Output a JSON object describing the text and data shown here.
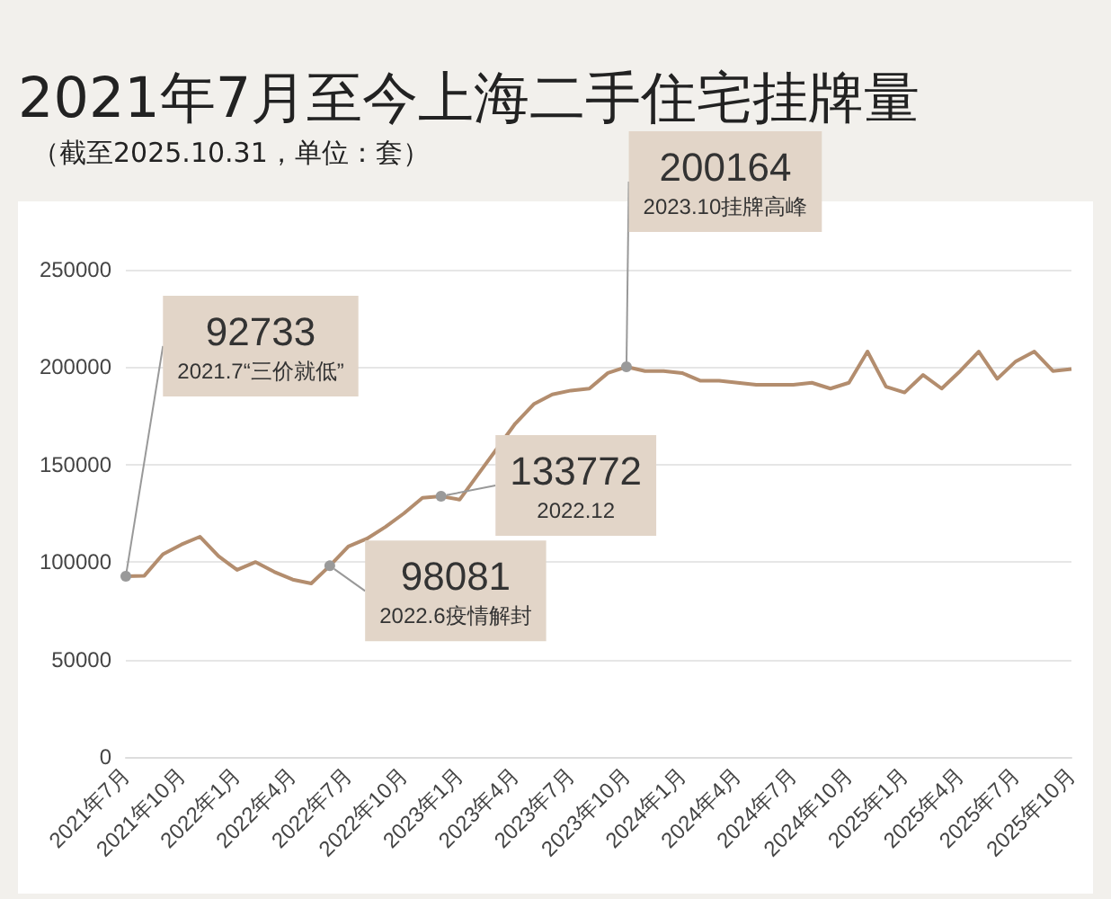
{
  "chart_data": {
    "type": "line",
    "title": "2021年7月至今上海二手住宅挂牌量",
    "subtitle": "（截至2025.10.31，单位：套）",
    "categories": [
      "2021年7月",
      null,
      null,
      "2021年10月",
      null,
      null,
      "2022年1月",
      null,
      null,
      "2022年4月",
      null,
      null,
      "2022年7月",
      null,
      null,
      "2022年10月",
      null,
      null,
      "2023年1月",
      null,
      null,
      "2023年4月",
      null,
      null,
      "2023年7月",
      null,
      null,
      "2023年10月",
      null,
      null,
      "2024年1月",
      null,
      null,
      "2024年4月",
      null,
      null,
      "2024年7月",
      null,
      null,
      "2024年10月",
      null,
      null,
      "2025年1月",
      null,
      null,
      "2025年4月",
      null,
      null,
      "2025年7月",
      null,
      null,
      "2025年10月"
    ],
    "series": [
      {
        "color": "#b38d6e",
        "values": [
          92733,
          93000,
          104000,
          109000,
          113000,
          103000,
          96000,
          100000,
          95000,
          91000,
          89000,
          98081,
          108000,
          112000,
          118000,
          125000,
          133000,
          133772,
          132000,
          145000,
          158000,
          171000,
          181000,
          186000,
          188000,
          189000,
          197000,
          200164,
          198000,
          198000,
          197000,
          193000,
          193000,
          192000,
          191000,
          191000,
          191000,
          192000,
          189000,
          192000,
          208000,
          190000,
          187000,
          196000,
          189000,
          198000,
          208000,
          194000,
          203000,
          208000,
          198000,
          199000
        ],
        "value_labels": [
          "92733",
          null,
          null,
          null,
          null,
          null,
          null,
          null,
          null,
          null,
          null,
          "98081",
          null,
          null,
          null,
          null,
          null,
          "133772",
          null,
          null,
          null,
          null,
          null,
          null,
          null,
          null,
          null,
          "200164",
          null,
          null,
          null,
          null,
          null,
          null,
          null,
          null,
          null,
          null,
          null,
          null,
          null,
          null,
          null,
          null,
          null,
          null,
          null,
          null,
          null,
          null,
          null,
          null
        ]
      }
    ],
    "annotations": [
      {
        "text": "2021.7“三价就低”",
        "x": "2021年7月",
        "y": 92733
      },
      "2022.6疫情解封",
      "2022.12",
      {
        "text": "2023.10挂牌高峰",
        "x": "2023年10月",
        "y": 200164
      }
    ],
    "ylim": [
      0,
      250000
    ],
    "yticks": [
      0,
      50000,
      100000,
      150000,
      200000,
      250000
    ],
    "grid": "y"
  }
}
